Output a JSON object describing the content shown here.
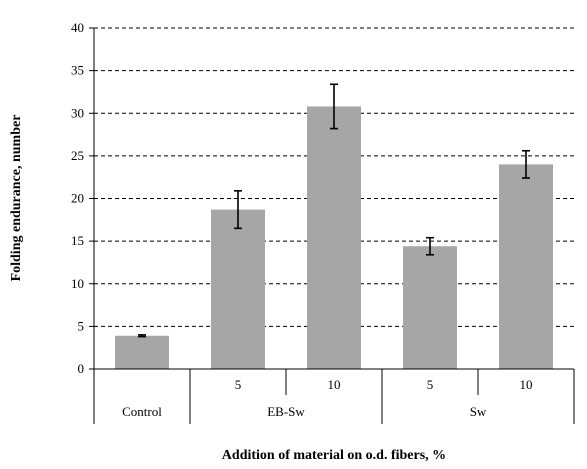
{
  "chart_data": {
    "type": "bar",
    "title": "",
    "xlabel": "Addition of material on o.d. fibers, %",
    "ylabel": "Folding endurance, number",
    "ylim": [
      0,
      40
    ],
    "yticks": [
      0,
      5,
      10,
      15,
      20,
      25,
      30,
      35,
      40
    ],
    "grid": "horizontal dashed",
    "bar_color": "#a6a6a6",
    "categories": [
      "Control",
      "5",
      "10",
      "5",
      "10"
    ],
    "groups": [
      {
        "label": "Control",
        "categories": []
      },
      {
        "label": "EB-Sw",
        "categories": [
          "5",
          "10"
        ]
      },
      {
        "label": "Sw",
        "categories": [
          "5",
          "10"
        ]
      }
    ],
    "values": [
      3.9,
      18.7,
      30.8,
      14.4,
      24.0
    ],
    "errors": [
      0.1,
      2.2,
      2.6,
      1.0,
      1.6
    ]
  }
}
